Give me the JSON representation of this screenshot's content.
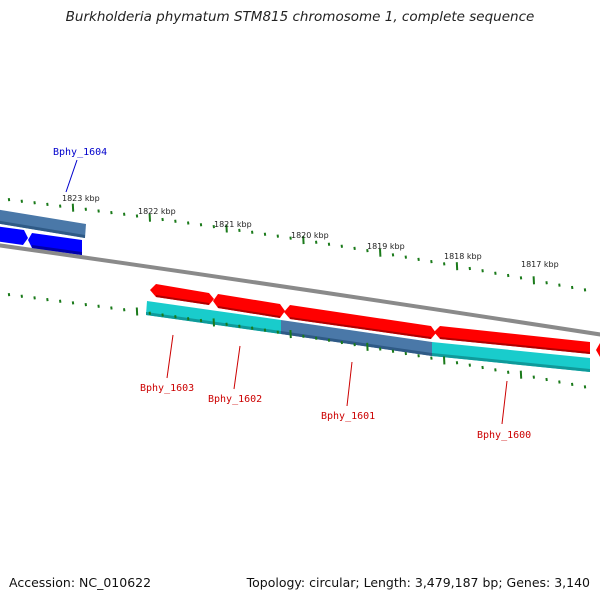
{
  "title": "Burkholderia phymatum STM815 chromosome 1, complete sequence",
  "footer": {
    "accession": "Accession: NC_010622",
    "summary": "Topology: circular; Length: 3,479,187 bp; Genes: 3,140"
  },
  "colors": {
    "backbone": "#8a8a8a",
    "ticks": "#1a7a1a",
    "forward_gene": "#ff0000",
    "reverse_gene": "#0000ff",
    "rna_like": "#19cccc",
    "highlight": "#4a78a8",
    "label_forward": "#cc0000",
    "label_reverse": "#0000cc"
  },
  "kbp_labels": [
    "1823 kbp",
    "1822 kbp",
    "1821 kbp",
    "1820 kbp",
    "1819 kbp",
    "1818 kbp",
    "1817 kbp"
  ],
  "gene_labels": [
    {
      "text": "Bphy_1604",
      "strand": "reverse"
    },
    {
      "text": "Bphy_1603",
      "strand": "forward"
    },
    {
      "text": "Bphy_1602",
      "strand": "forward"
    },
    {
      "text": "Bphy_1601",
      "strand": "forward"
    },
    {
      "text": "Bphy_1600",
      "strand": "forward"
    }
  ]
}
